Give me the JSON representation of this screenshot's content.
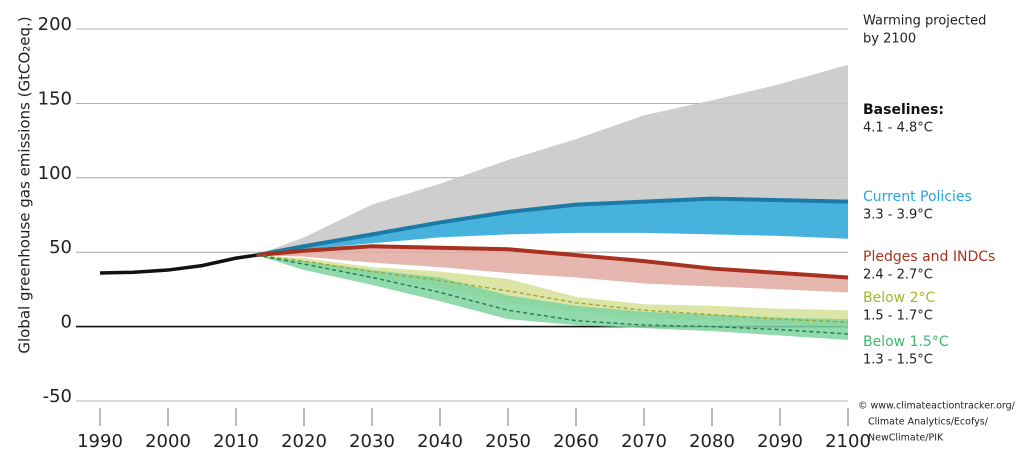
{
  "chart_data": {
    "type": "band",
    "ylabel": "Global greenhouse gas emissions (GtCO₂eq.)",
    "x": [
      1990,
      1995,
      2000,
      2005,
      2010,
      2013,
      2020,
      2030,
      2040,
      2050,
      2060,
      2070,
      2080,
      2090,
      2100
    ],
    "xlim": [
      1990,
      2100
    ],
    "xticks": [
      1990,
      2000,
      2010,
      2020,
      2030,
      2040,
      2050,
      2060,
      2070,
      2080,
      2090,
      2100
    ],
    "ylim": [
      -50,
      200
    ],
    "yticks": [
      -50,
      0,
      50,
      100,
      150,
      200
    ],
    "grid": true,
    "legend_title": [
      "Warming projected",
      "by 2100"
    ],
    "history": {
      "color": "#111111",
      "values": [
        36,
        36.5,
        38,
        41,
        46,
        48,
        null,
        null,
        null,
        null,
        null,
        null,
        null,
        null,
        null
      ]
    },
    "series": [
      {
        "name": "Baselines:",
        "range": "4.1 - 4.8°C",
        "color": "#c6c6c6",
        "label_color": "#111111",
        "high": [
          null,
          null,
          null,
          null,
          null,
          48,
          60,
          82,
          96,
          112,
          126,
          142,
          152,
          163,
          176
        ],
        "low": [
          null,
          null,
          null,
          null,
          null,
          48,
          53,
          60,
          70,
          77,
          82,
          84,
          87,
          86,
          85
        ]
      },
      {
        "name": "Current Policies",
        "range": "3.3 - 3.9°C",
        "color": "#27a4d8",
        "label_color": "#27a4d8",
        "edge_color": "#1b7aa6",
        "high": [
          null,
          null,
          null,
          null,
          null,
          48,
          54,
          62,
          70,
          77,
          82,
          84,
          86,
          85,
          84
        ],
        "low": [
          null,
          null,
          null,
          null,
          null,
          48,
          52,
          56,
          60,
          62,
          63,
          63,
          62,
          61,
          59
        ]
      },
      {
        "name": "Pledges and INDCs",
        "range": "2.4 - 2.7°C",
        "color": "#e2aaa1",
        "label_color": "#a8321f",
        "edge_color": "#a8321f",
        "high": [
          null,
          null,
          null,
          null,
          null,
          48,
          51,
          54,
          53,
          52,
          48,
          44,
          39,
          36,
          33
        ],
        "low": [
          null,
          null,
          null,
          null,
          null,
          48,
          47,
          43,
          40,
          36,
          33,
          29,
          27,
          25,
          23
        ]
      },
      {
        "name": "Below 2°C",
        "range": "1.5 - 1.7°C",
        "color": "#d6e196",
        "label_color": "#a7b52e",
        "median_color": "#9aa536",
        "high": [
          null,
          null,
          null,
          null,
          null,
          48,
          46,
          40,
          37,
          32,
          20,
          15,
          14,
          12,
          11
        ],
        "low": [
          null,
          null,
          null,
          null,
          null,
          48,
          42,
          33,
          26,
          16,
          10,
          6,
          4,
          2,
          0
        ],
        "median": [
          null,
          null,
          null,
          null,
          null,
          48,
          44,
          37,
          31,
          24,
          16,
          11,
          8,
          5,
          3
        ]
      },
      {
        "name": "Below 1.5°C",
        "range": "1.3 - 1.5°C",
        "color": "#7ed4a0",
        "label_color": "#3fb86c",
        "median_color": "#237a4a",
        "high": [
          null,
          null,
          null,
          null,
          null,
          48,
          44,
          38,
          33,
          21,
          14,
          10,
          8,
          6,
          5
        ],
        "low": [
          null,
          null,
          null,
          null,
          null,
          48,
          38,
          28,
          17,
          5,
          1,
          -1,
          -3,
          -6,
          -9
        ],
        "median": [
          null,
          null,
          null,
          null,
          null,
          48,
          42,
          33,
          23,
          11,
          4,
          1,
          0,
          -2,
          -5
        ]
      }
    ],
    "credit": [
      "© www.climateactiontracker.org/",
      "Climate Analytics/Ecofys/",
      "NewClimate/PIK"
    ]
  }
}
